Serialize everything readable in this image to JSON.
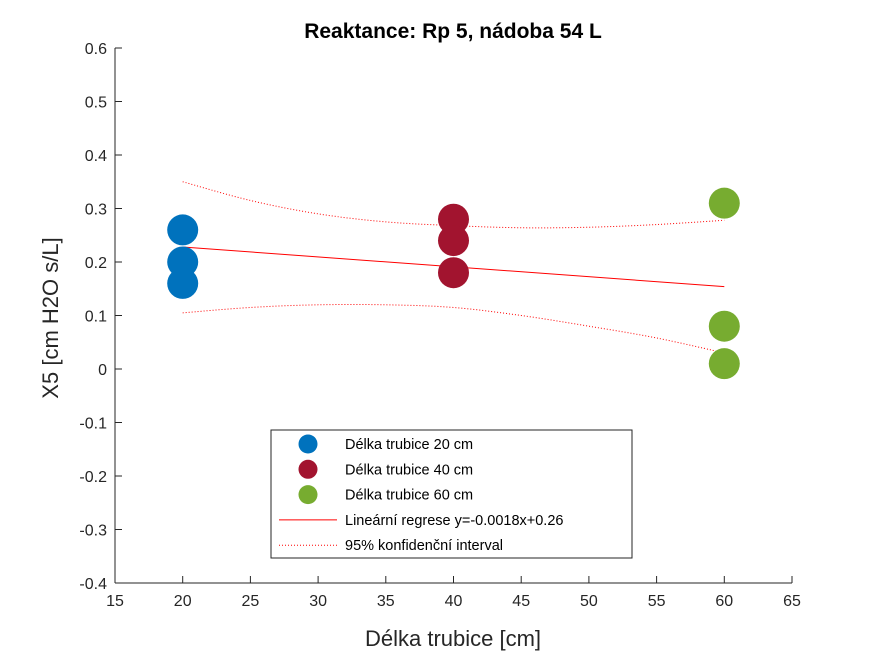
{
  "chart_data": {
    "type": "scatter",
    "title": "Reaktance: Rp 5, nádoba 54 L",
    "xlabel": "Délka trubice [cm]",
    "ylabel": "X5 [cm H2O s/L]",
    "xlim": [
      15,
      65
    ],
    "ylim": [
      -0.4,
      0.6
    ],
    "xticks": [
      15,
      20,
      25,
      30,
      35,
      40,
      45,
      50,
      55,
      60,
      65
    ],
    "yticks": [
      -0.4,
      -0.3,
      -0.2,
      -0.1,
      0,
      0.1,
      0.2,
      0.3,
      0.4,
      0.5,
      0.6
    ],
    "xtick_labels": [
      "15",
      "20",
      "25",
      "30",
      "35",
      "40",
      "45",
      "50",
      "55",
      "60",
      "65"
    ],
    "ytick_labels": [
      "-0.4",
      "-0.3",
      "-0.2",
      "-0.1",
      "0",
      "0.1",
      "0.2",
      "0.3",
      "0.4",
      "0.5",
      "0.6"
    ],
    "grid": false,
    "legend_position": "bottom-center",
    "series": [
      {
        "name": "Délka trubice 20 cm",
        "color": "#0072BD",
        "x": [
          20,
          20,
          20
        ],
        "y": [
          0.26,
          0.2,
          0.16
        ]
      },
      {
        "name": "Délka trubice 40 cm",
        "color": "#A2142F",
        "x": [
          40,
          40,
          40
        ],
        "y": [
          0.28,
          0.24,
          0.18
        ]
      },
      {
        "name": "Délka trubice 60 cm",
        "color": "#77AC30",
        "x": [
          60,
          60,
          60
        ],
        "y": [
          0.31,
          0.08,
          0.01
        ]
      }
    ],
    "regression": {
      "name": "Lineární regrese y=-0.0018x+0.26",
      "color": "#FF0000",
      "x": [
        20,
        60
      ],
      "y": [
        0.228,
        0.154
      ]
    },
    "confidence_interval": {
      "name": "95% konfidenční interval",
      "color": "#FF0000",
      "x": [
        20,
        25,
        30,
        35,
        40,
        45,
        50,
        55,
        60
      ],
      "upper": [
        0.35,
        0.315,
        0.29,
        0.275,
        0.268,
        0.264,
        0.265,
        0.27,
        0.278
      ],
      "lower": [
        0.105,
        0.115,
        0.12,
        0.12,
        0.115,
        0.1,
        0.08,
        0.058,
        0.03
      ]
    }
  }
}
